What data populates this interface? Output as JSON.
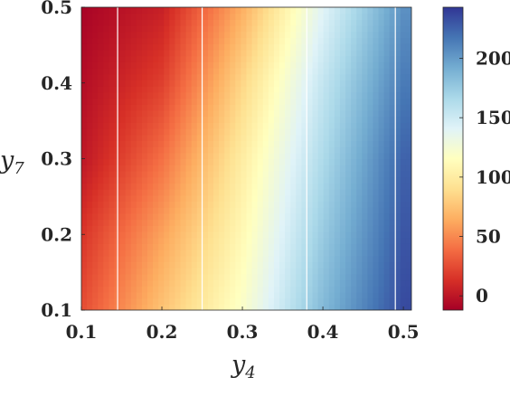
{
  "chart_data": {
    "type": "heatmap",
    "title": "",
    "xlabel": {
      "base": "y",
      "sub": "4"
    },
    "ylabel": {
      "base": "y",
      "sub": "7"
    },
    "xlim": [
      0.1,
      0.51
    ],
    "ylim": [
      0.1,
      0.5
    ],
    "x_ticks": [
      "0.1",
      "0.2",
      "0.3",
      "0.4",
      "0.5"
    ],
    "y_ticks": [
      "0.1",
      "0.2",
      "0.3",
      "0.4",
      "0.5"
    ],
    "colorbar": {
      "lim": [
        -12,
        243
      ],
      "ticks": [
        "0",
        "50",
        "100",
        "150",
        "200"
      ],
      "colormap": "RdYlBu",
      "colors": [
        "#a50026",
        "#d73027",
        "#f46d43",
        "#fdae61",
        "#fee090",
        "#ffffbf",
        "#e0f3f8",
        "#abd9e9",
        "#74add1",
        "#4575b4",
        "#313695"
      ]
    },
    "approx_values": {
      "x": [
        0.1,
        0.2,
        0.3,
        0.4,
        0.5
      ],
      "y": [
        0.1,
        0.2,
        0.3,
        0.4,
        0.5
      ],
      "z_rows_by_y": [
        [
          25,
          75,
          120,
          185,
          235
        ],
        [
          15,
          60,
          110,
          175,
          230
        ],
        [
          0,
          40,
          100,
          165,
          225
        ],
        [
          -5,
          20,
          85,
          155,
          215
        ],
        [
          -10,
          5,
          65,
          140,
          205
        ]
      ]
    },
    "grid": false,
    "white_vertical_lines_at_x": [
      0.145,
      0.25,
      0.38,
      0.49
    ]
  }
}
